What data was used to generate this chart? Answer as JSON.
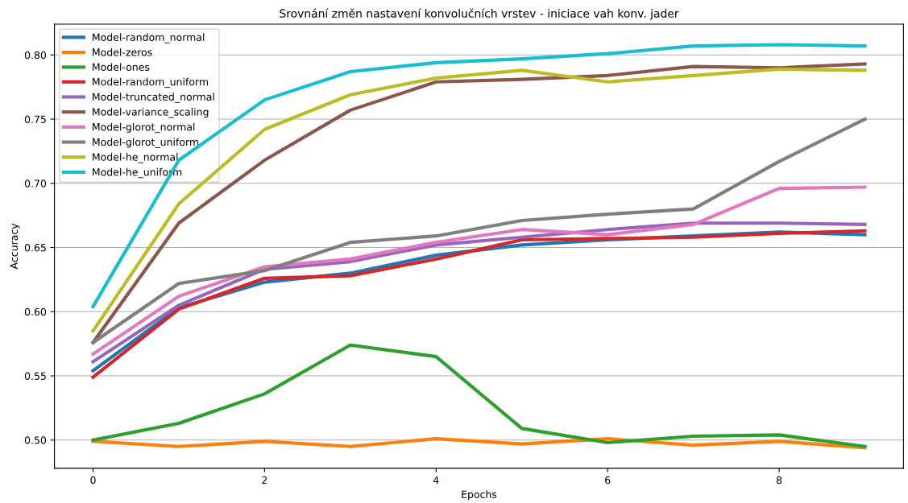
{
  "chart_data": {
    "type": "line",
    "title": "Srovnání změn nastavení konvolučních vrstev - iniciace vah konv. jader",
    "xlabel": "Epochs",
    "ylabel": "Accuracy",
    "x": [
      0,
      1,
      2,
      3,
      4,
      5,
      6,
      7,
      8,
      9
    ],
    "series": [
      {
        "name": "Model-random_normal",
        "color": "#1f77b4",
        "values": [
          0.554,
          0.603,
          0.623,
          0.63,
          0.644,
          0.652,
          0.656,
          0.659,
          0.662,
          0.66
        ]
      },
      {
        "name": "Model-zeros",
        "color": "#ff7f0e",
        "values": [
          0.499,
          0.495,
          0.499,
          0.495,
          0.501,
          0.497,
          0.501,
          0.496,
          0.499,
          0.494
        ]
      },
      {
        "name": "Model-ones",
        "color": "#2ca02c",
        "values": [
          0.5,
          0.513,
          0.536,
          0.574,
          0.565,
          0.509,
          0.498,
          0.503,
          0.504,
          0.495
        ]
      },
      {
        "name": "Model-random_uniform",
        "color": "#d62728",
        "values": [
          0.549,
          0.602,
          0.626,
          0.628,
          0.641,
          0.656,
          0.657,
          0.658,
          0.661,
          0.663
        ]
      },
      {
        "name": "Model-truncated_normal",
        "color": "#9467bd",
        "values": [
          0.561,
          0.605,
          0.633,
          0.639,
          0.652,
          0.658,
          0.664,
          0.669,
          0.669,
          0.668
        ]
      },
      {
        "name": "Model-variance_scaling",
        "color": "#8c564b",
        "values": [
          0.576,
          0.669,
          0.718,
          0.757,
          0.779,
          0.781,
          0.784,
          0.791,
          0.79,
          0.793
        ]
      },
      {
        "name": "Model-glorot_normal",
        "color": "#e377c2",
        "values": [
          0.567,
          0.612,
          0.635,
          0.641,
          0.654,
          0.664,
          0.66,
          0.668,
          0.696,
          0.697
        ]
      },
      {
        "name": "Model-glorot_uniform",
        "color": "#7f7f7f",
        "values": [
          0.576,
          0.622,
          0.632,
          0.654,
          0.659,
          0.671,
          0.676,
          0.68,
          0.717,
          0.75
        ]
      },
      {
        "name": "Model-he_normal",
        "color": "#bcbd22",
        "values": [
          0.585,
          0.684,
          0.742,
          0.769,
          0.782,
          0.788,
          0.779,
          0.784,
          0.789,
          0.788
        ]
      },
      {
        "name": "Model-he_uniform",
        "color": "#17becf",
        "values": [
          0.604,
          0.718,
          0.765,
          0.787,
          0.794,
          0.797,
          0.801,
          0.807,
          0.808,
          0.807
        ]
      }
    ],
    "xlim": [
      -0.45,
      9.45
    ],
    "ylim": [
      0.478,
      0.824
    ],
    "xticks": [
      0,
      2,
      4,
      6,
      8
    ],
    "yticks": [
      {
        "value": 0.5,
        "label": "0.50"
      },
      {
        "value": 0.55,
        "label": "0.55"
      },
      {
        "value": 0.6,
        "label": "0.60"
      },
      {
        "value": 0.65,
        "label": "0.65"
      },
      {
        "value": 0.7,
        "label": "0.70"
      },
      {
        "value": 0.75,
        "label": "0.75"
      },
      {
        "value": 0.8,
        "label": "0.80"
      }
    ],
    "grid": "y",
    "legend": "top left",
    "marker": "none",
    "line_style": "solid"
  }
}
